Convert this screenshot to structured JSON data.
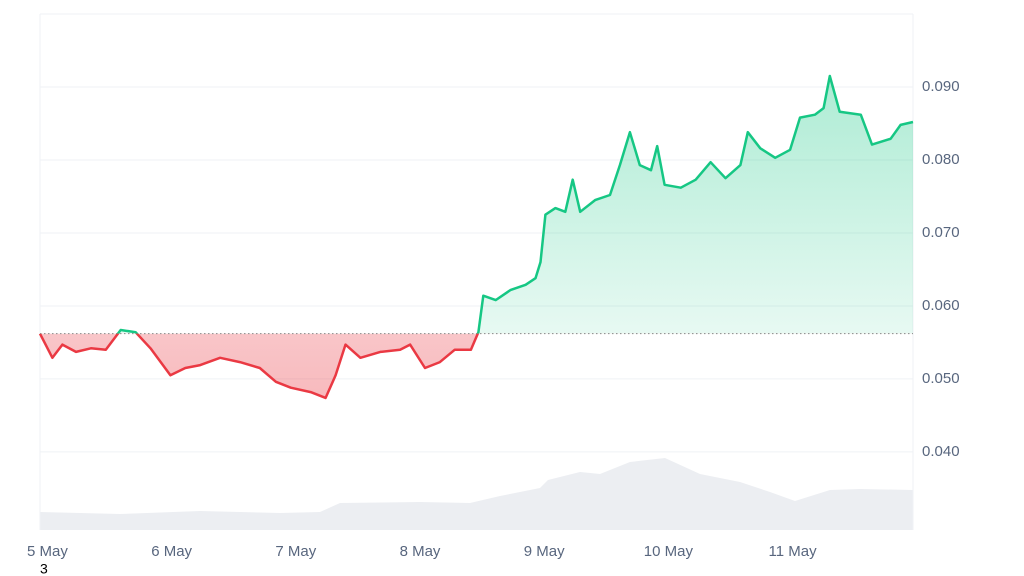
{
  "chart_data": {
    "type": "line",
    "x": [
      4.94,
      5.04,
      5.12,
      5.23,
      5.35,
      5.47,
      5.59,
      5.71,
      5.83,
      5.99,
      6.11,
      6.23,
      6.39,
      6.55,
      6.71,
      6.84,
      6.96,
      7.12,
      7.24,
      7.32,
      7.4,
      7.52,
      7.68,
      7.84,
      7.92,
      8.04,
      8.16,
      8.28,
      8.41,
      8.47,
      8.51,
      8.61,
      8.73,
      8.85,
      8.93,
      8.97,
      9.01,
      9.09,
      9.17,
      9.23,
      9.29,
      9.41,
      9.53,
      9.61,
      9.69,
      9.77,
      9.86,
      9.91,
      9.97,
      10.1,
      10.22,
      10.34,
      10.46,
      10.58,
      10.64,
      10.74,
      10.86,
      10.98,
      11.06,
      11.18,
      11.25,
      11.3,
      11.38,
      11.55,
      11.64,
      11.79,
      11.87,
      11.97
    ],
    "values": [
      0.0562,
      0.0529,
      0.0547,
      0.0537,
      0.0542,
      0.054,
      0.0567,
      0.0564,
      0.0542,
      0.0505,
      0.0515,
      0.0519,
      0.0529,
      0.0523,
      0.0515,
      0.0496,
      0.0488,
      0.0482,
      0.0474,
      0.0505,
      0.0547,
      0.0529,
      0.0537,
      0.054,
      0.0547,
      0.0515,
      0.0523,
      0.054,
      0.054,
      0.0564,
      0.0614,
      0.0608,
      0.0622,
      0.0629,
      0.0638,
      0.066,
      0.0725,
      0.0734,
      0.0729,
      0.0773,
      0.0729,
      0.0745,
      0.0752,
      0.0793,
      0.0838,
      0.0793,
      0.0786,
      0.0819,
      0.0766,
      0.0762,
      0.0773,
      0.0797,
      0.0775,
      0.0793,
      0.0838,
      0.0816,
      0.0803,
      0.0814,
      0.0858,
      0.0862,
      0.0871,
      0.0915,
      0.0866,
      0.0862,
      0.0821,
      0.0829,
      0.0848,
      0.0852
    ],
    "baseline": 0.0562,
    "up_color": "#16c784",
    "down_color": "#ea3943",
    "xlim": [
      4.94,
      11.97
    ],
    "xticks": [
      {
        "value": 5,
        "label": "5 May"
      },
      {
        "value": 6,
        "label": "6 May"
      },
      {
        "value": 7,
        "label": "7 May"
      },
      {
        "value": 8,
        "label": "8 May"
      },
      {
        "value": 9,
        "label": "9 May"
      },
      {
        "value": 10,
        "label": "10 May"
      },
      {
        "value": 11,
        "label": "11 May"
      }
    ],
    "ylim": [
      0.0293,
      0.1
    ],
    "yticks": [
      {
        "value": 0.04,
        "label": "0.040"
      },
      {
        "value": 0.05,
        "label": "0.050"
      },
      {
        "value": 0.06,
        "label": "0.060"
      },
      {
        "value": 0.07,
        "label": "0.070"
      },
      {
        "value": 0.08,
        "label": "0.080"
      },
      {
        "value": 0.09,
        "label": "0.090"
      }
    ],
    "grid": true,
    "footnote": "3"
  }
}
